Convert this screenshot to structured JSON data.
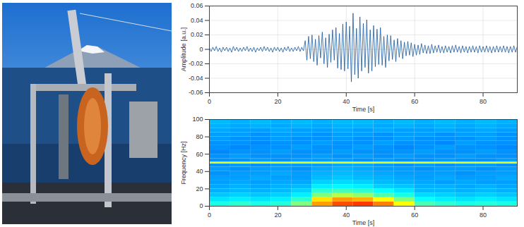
{
  "chart_data": [
    {
      "type": "line",
      "xlabel": "Time [s]",
      "ylabel": "Amplitude [a.u.]",
      "xlim": [
        0,
        90
      ],
      "xticks": [
        0,
        20,
        40,
        60,
        80
      ],
      "ylim": [
        -0.06,
        0.06
      ],
      "yticks": [
        -0.06,
        -0.04,
        -0.02,
        0,
        0.02,
        0.04,
        0.06
      ],
      "grid": true,
      "color": "#1a5a9c",
      "x": [
        0,
        0.5,
        1,
        1.5,
        2,
        2.5,
        3,
        3.5,
        4,
        4.5,
        5,
        5.5,
        6,
        6.5,
        7,
        7.5,
        8,
        8.5,
        9,
        9.5,
        10,
        10.5,
        11,
        11.5,
        12,
        12.5,
        13,
        13.5,
        14,
        14.5,
        15,
        15.5,
        16,
        16.5,
        17,
        17.5,
        18,
        18.5,
        19,
        19.5,
        20,
        20.5,
        21,
        21.5,
        22,
        22.5,
        23,
        23.5,
        24,
        24.5,
        25,
        25.5,
        26,
        26.5,
        27,
        27.5,
        28,
        28.5,
        29,
        29.5,
        30,
        30.5,
        31,
        31.5,
        32,
        32.5,
        33,
        33.5,
        34,
        34.5,
        35,
        35.5,
        36,
        36.5,
        37,
        37.5,
        38,
        38.5,
        39,
        39.5,
        40,
        40.5,
        41,
        41.5,
        42,
        42.5,
        43,
        43.5,
        44,
        44.5,
        45,
        45.5,
        46,
        46.5,
        47,
        47.5,
        48,
        48.5,
        49,
        49.5,
        50,
        50.5,
        51,
        51.5,
        52,
        52.5,
        53,
        53.5,
        54,
        54.5,
        55,
        55.5,
        56,
        56.5,
        57,
        57.5,
        58,
        58.5,
        59,
        59.5,
        60,
        60.5,
        61,
        61.5,
        62,
        62.5,
        63,
        63.5,
        64,
        64.5,
        65,
        65.5,
        66,
        66.5,
        67,
        67.5,
        68,
        68.5,
        69,
        69.5,
        70,
        70.5,
        71,
        71.5,
        72,
        72.5,
        73,
        73.5,
        74,
        74.5,
        75,
        75.5,
        76,
        76.5,
        77,
        77.5,
        78,
        78.5,
        79,
        79.5,
        80,
        80.5,
        81,
        81.5,
        82,
        82.5,
        83,
        83.5,
        84,
        84.5,
        85,
        85.5,
        86,
        86.5,
        87,
        87.5,
        88,
        88.5,
        89,
        89.5,
        90
      ],
      "values": [
        0.002,
        -0.003,
        0.003,
        -0.002,
        0.004,
        -0.003,
        0.002,
        -0.004,
        0.003,
        -0.002,
        0.003,
        -0.003,
        0.002,
        -0.004,
        0.004,
        -0.002,
        0.003,
        -0.003,
        0.002,
        -0.003,
        0.003,
        -0.002,
        0.004,
        -0.003,
        0.002,
        -0.003,
        0.003,
        -0.004,
        0.002,
        -0.002,
        0.003,
        -0.003,
        0.004,
        -0.002,
        0.003,
        -0.003,
        0.002,
        -0.004,
        0.003,
        -0.002,
        0.003,
        -0.003,
        0.002,
        -0.004,
        0.003,
        -0.002,
        0.004,
        -0.003,
        0.002,
        -0.003,
        0.003,
        -0.002,
        0.004,
        -0.003,
        0.003,
        -0.002,
        0.012,
        -0.015,
        0.018,
        -0.013,
        0.02,
        -0.017,
        0.014,
        -0.022,
        0.019,
        -0.012,
        0.024,
        -0.02,
        0.016,
        -0.025,
        0.021,
        -0.018,
        0.027,
        -0.015,
        0.03,
        -0.026,
        0.022,
        -0.028,
        0.035,
        -0.03,
        0.038,
        -0.027,
        0.032,
        -0.045,
        0.05,
        -0.035,
        0.029,
        -0.04,
        0.045,
        -0.03,
        0.036,
        -0.025,
        0.041,
        -0.033,
        0.027,
        -0.03,
        0.033,
        -0.024,
        0.028,
        -0.021,
        0.03,
        -0.022,
        0.018,
        -0.025,
        0.02,
        -0.016,
        0.019,
        -0.014,
        0.013,
        -0.017,
        0.015,
        -0.011,
        0.012,
        -0.013,
        0.01,
        -0.009,
        0.011,
        -0.008,
        0.009,
        -0.01,
        0.007,
        -0.008,
        0.006,
        -0.007,
        0.008,
        -0.005,
        0.006,
        -0.006,
        0.005,
        -0.006,
        0.007,
        -0.005,
        0.005,
        -0.004,
        0.006,
        -0.005,
        0.004,
        -0.005,
        0.005,
        -0.004,
        0.004,
        -0.005,
        0.005,
        -0.004,
        0.006,
        -0.004,
        0.004,
        -0.005,
        0.005,
        -0.004,
        0.004,
        -0.005,
        0.004,
        -0.004,
        0.005,
        -0.004,
        0.004,
        -0.005,
        0.005,
        -0.004,
        0.004,
        -0.004,
        0.005,
        -0.004,
        0.004,
        -0.005,
        0.004,
        -0.004,
        0.005,
        -0.004,
        0.004,
        -0.004,
        0.005,
        -0.004,
        0.004,
        -0.005,
        0.004,
        -0.004,
        0.005,
        -0.004,
        0.004
      ]
    },
    {
      "type": "heatmap",
      "xlabel": "Time [s]",
      "ylabel": "Frequency [Hz]",
      "xlim": [
        0,
        90
      ],
      "xticks": [
        0,
        20,
        40,
        60,
        80
      ],
      "ylim": [
        0,
        100
      ],
      "yticks": [
        0,
        20,
        40,
        60,
        80,
        100
      ],
      "grid": false,
      "clim": [
        0,
        1
      ],
      "x_bins": [
        0,
        6,
        12,
        18,
        24,
        30,
        36,
        42,
        48,
        54,
        60,
        66,
        72,
        78,
        84,
        90
      ],
      "y_bins": [
        0,
        5,
        10,
        15,
        20,
        25,
        30,
        35,
        40,
        45,
        49,
        51,
        55,
        60,
        65,
        70,
        75,
        80,
        85,
        90,
        95,
        100
      ],
      "cells": [
        [
          0.4,
          0.42,
          0.4,
          0.41,
          0.5,
          0.72,
          0.8,
          0.82,
          0.75,
          0.62,
          0.45,
          0.42,
          0.4,
          0.41,
          0.4
        ],
        [
          0.35,
          0.36,
          0.35,
          0.36,
          0.42,
          0.65,
          0.72,
          0.7,
          0.62,
          0.5,
          0.38,
          0.36,
          0.35,
          0.36,
          0.35
        ],
        [
          0.32,
          0.33,
          0.32,
          0.33,
          0.36,
          0.5,
          0.55,
          0.52,
          0.45,
          0.4,
          0.34,
          0.33,
          0.32,
          0.33,
          0.32
        ],
        [
          0.3,
          0.31,
          0.3,
          0.31,
          0.33,
          0.42,
          0.44,
          0.42,
          0.38,
          0.35,
          0.31,
          0.31,
          0.3,
          0.31,
          0.3
        ],
        [
          0.29,
          0.3,
          0.29,
          0.3,
          0.31,
          0.36,
          0.37,
          0.36,
          0.33,
          0.32,
          0.3,
          0.3,
          0.29,
          0.3,
          0.29
        ],
        [
          0.28,
          0.29,
          0.28,
          0.29,
          0.29,
          0.33,
          0.34,
          0.33,
          0.31,
          0.3,
          0.29,
          0.28,
          0.29,
          0.28,
          0.28
        ],
        [
          0.28,
          0.28,
          0.29,
          0.28,
          0.28,
          0.31,
          0.32,
          0.31,
          0.3,
          0.29,
          0.28,
          0.29,
          0.28,
          0.28,
          0.29
        ],
        [
          0.27,
          0.28,
          0.28,
          0.29,
          0.28,
          0.3,
          0.31,
          0.3,
          0.29,
          0.28,
          0.28,
          0.28,
          0.27,
          0.28,
          0.28
        ],
        [
          0.28,
          0.27,
          0.28,
          0.28,
          0.27,
          0.29,
          0.3,
          0.29,
          0.28,
          0.28,
          0.27,
          0.28,
          0.28,
          0.27,
          0.28
        ],
        [
          0.27,
          0.28,
          0.27,
          0.28,
          0.28,
          0.28,
          0.29,
          0.29,
          0.28,
          0.27,
          0.28,
          0.27,
          0.28,
          0.28,
          0.27
        ],
        [
          0.6,
          0.6,
          0.6,
          0.6,
          0.6,
          0.6,
          0.6,
          0.6,
          0.6,
          0.6,
          0.6,
          0.6,
          0.6,
          0.6,
          0.6
        ],
        [
          0.27,
          0.27,
          0.28,
          0.27,
          0.28,
          0.28,
          0.28,
          0.27,
          0.28,
          0.27,
          0.27,
          0.28,
          0.27,
          0.27,
          0.28
        ],
        [
          0.27,
          0.28,
          0.27,
          0.27,
          0.27,
          0.28,
          0.27,
          0.28,
          0.27,
          0.28,
          0.27,
          0.27,
          0.28,
          0.27,
          0.27
        ],
        [
          0.26,
          0.27,
          0.27,
          0.28,
          0.27,
          0.27,
          0.28,
          0.27,
          0.27,
          0.27,
          0.28,
          0.27,
          0.27,
          0.28,
          0.27
        ],
        [
          0.27,
          0.26,
          0.27,
          0.27,
          0.28,
          0.27,
          0.27,
          0.28,
          0.27,
          0.26,
          0.27,
          0.28,
          0.27,
          0.27,
          0.26
        ],
        [
          0.27,
          0.27,
          0.26,
          0.27,
          0.27,
          0.28,
          0.27,
          0.27,
          0.28,
          0.27,
          0.27,
          0.26,
          0.28,
          0.27,
          0.27
        ],
        [
          0.28,
          0.27,
          0.27,
          0.28,
          0.27,
          0.27,
          0.28,
          0.27,
          0.27,
          0.28,
          0.27,
          0.27,
          0.27,
          0.28,
          0.27
        ],
        [
          0.28,
          0.28,
          0.27,
          0.28,
          0.28,
          0.27,
          0.28,
          0.28,
          0.27,
          0.28,
          0.28,
          0.27,
          0.28,
          0.28,
          0.27
        ],
        [
          0.29,
          0.28,
          0.28,
          0.29,
          0.28,
          0.28,
          0.29,
          0.28,
          0.29,
          0.28,
          0.28,
          0.29,
          0.28,
          0.29,
          0.28
        ],
        [
          0.3,
          0.29,
          0.3,
          0.29,
          0.3,
          0.29,
          0.3,
          0.3,
          0.29,
          0.3,
          0.29,
          0.3,
          0.29,
          0.3,
          0.29
        ],
        [
          0.31,
          0.3,
          0.31,
          0.3,
          0.31,
          0.3,
          0.31,
          0.31,
          0.3,
          0.31,
          0.3,
          0.31,
          0.3,
          0.31,
          0.3
        ]
      ]
    }
  ]
}
